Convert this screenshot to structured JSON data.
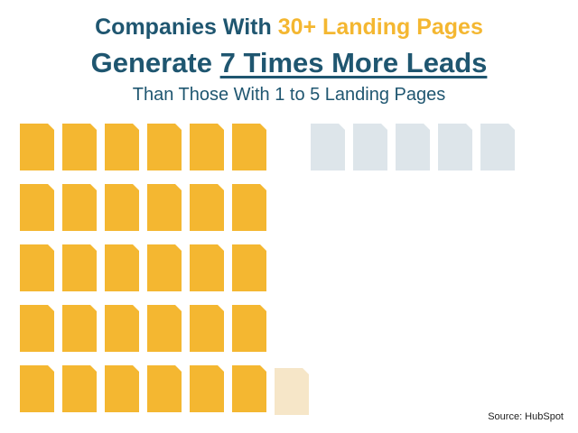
{
  "title": {
    "line1_prefix": "Companies With ",
    "line1_highlight": "30+ Landing Pages",
    "line2_prefix": "Generate ",
    "line2_underlined": "7 Times More Leads",
    "line3": "Than Those With 1 to 5 Landing Pages"
  },
  "icons": {
    "lead_icon": "document-icon",
    "partial_icon": "document-icon"
  },
  "colors": {
    "title": "#1f5670",
    "highlight": "#f4b731",
    "lead_document": "#f4b731",
    "partial_document": "#f6e6c8",
    "comparison_document": "#dde5ea"
  },
  "chart_data": {
    "type": "pictogram",
    "series": [
      {
        "full_icons": 30,
        "partial_icons": 1
      },
      {
        "full_icons": 5,
        "partial_icons": 0
      }
    ]
  },
  "footer": {
    "source": "Source: HubSpot"
  }
}
